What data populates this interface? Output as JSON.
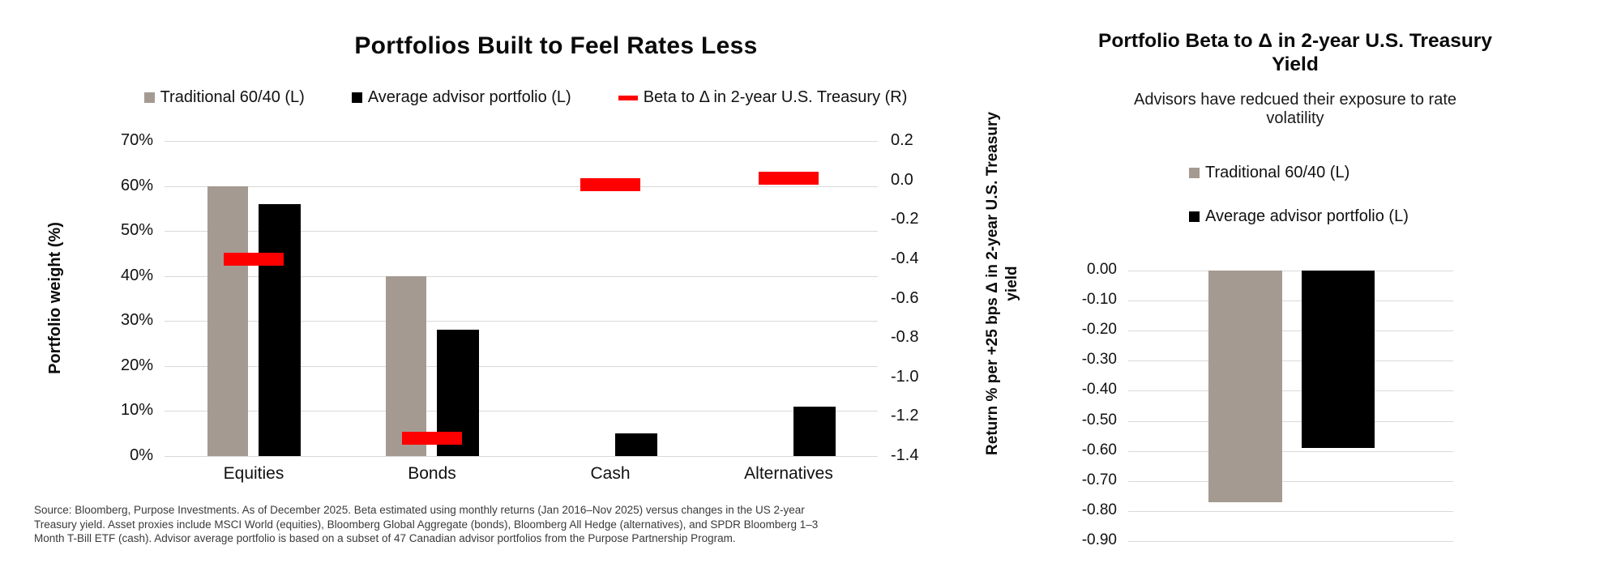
{
  "footer": {
    "lines": [
      "Source: Bloomberg, Purpose Investments. As of December 2025. Beta estimated using monthly returns (Jan 2016–Nov 2025) versus changes in the US 2-year",
      "Treasury yield. Asset proxies include MSCI World (equities), Bloomberg Global Aggregate (bonds), Bloomberg All Hedge (alternatives), and SPDR Bloomberg 1–3",
      "Month T-Bill ETF (cash). Advisor average portfolio is based on a subset of 47 Canadian advisor portfolios from the Purpose Partnership Program."
    ]
  },
  "colors": {
    "traditional_gray": "#a59a91",
    "advisor_black": "#000000",
    "beta_red": "#ff0000",
    "gridline": "#d9d9d9"
  },
  "chart_data": [
    {
      "type": "bar",
      "title": "Portfolios Built to Feel Rates Less",
      "categories": [
        "Equities",
        "Bonds",
        "Cash",
        "Alternatives"
      ],
      "series": [
        {
          "name": "Traditional 60/40 (L)",
          "axis": "left",
          "marker": "square",
          "color": "#a59a91",
          "values": [
            60,
            40,
            0,
            0
          ]
        },
        {
          "name": "Average advisor portfolio (L)",
          "axis": "left",
          "marker": "square",
          "color": "#000000",
          "values": [
            56,
            28,
            5,
            11
          ]
        },
        {
          "name": "Beta to Δ in 2-year U.S. Treasury (R)",
          "axis": "right",
          "marker": "dash",
          "color": "#ff0000",
          "values": [
            -0.4,
            -1.31,
            -0.02,
            0.01
          ]
        }
      ],
      "y_left": {
        "title": "Portfolio weight (%)",
        "min": 0,
        "max": 70,
        "step": 10,
        "format": "percent"
      },
      "y_right": {
        "title": "Return % per +25 bps Δ in 2-year U.S. Treasury yield",
        "min": -1.4,
        "max": 0.2,
        "step": 0.2
      },
      "grid": true,
      "legend_position": "top"
    },
    {
      "type": "bar",
      "title": "Portfolio Beta to Δ in 2-year U.S. Treasury Yield",
      "subtitle": "Advisors have redcued their exposure to rate volatility",
      "categories": [
        ""
      ],
      "series": [
        {
          "name": "Traditional 60/40 (L)",
          "marker": "square",
          "color": "#a59a91",
          "values": [
            -0.77
          ]
        },
        {
          "name": "Average advisor portfolio (L)",
          "marker": "square",
          "color": "#000000",
          "values": [
            -0.59
          ]
        }
      ],
      "y": {
        "min": -0.9,
        "max": 0.0,
        "step": 0.1,
        "format": "two_decimals"
      },
      "grid": true,
      "legend_position": "top"
    }
  ]
}
